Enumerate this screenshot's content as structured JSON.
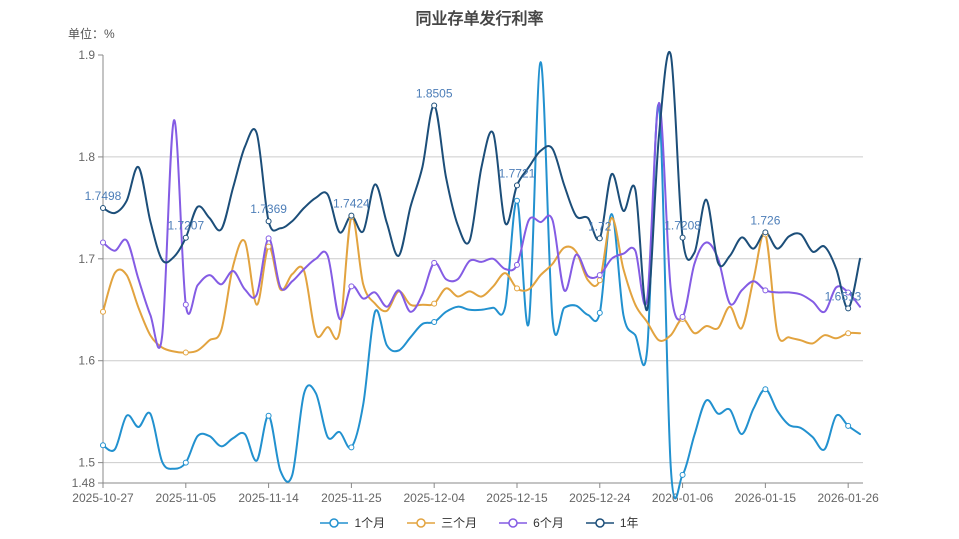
{
  "chart_data": {
    "type": "line",
    "title": "同业存单发行利率",
    "unit_label": "单位：%",
    "ylim": [
      1.48,
      1.9
    ],
    "y_ticks": [
      1.9,
      1.8,
      1.7,
      1.6,
      1.5,
      1.48
    ],
    "grid": true,
    "legend_position": "bottom",
    "x_tick_labels": [
      "2025-10-27",
      "2025-11-05",
      "2025-11-14",
      "2025-11-25",
      "2025-12-04",
      "2025-12-15",
      "2025-12-24",
      "2026-01-06",
      "2026-01-15",
      "2026-01-26"
    ],
    "tick_indices": [
      0,
      7,
      14,
      21,
      28,
      35,
      42,
      49,
      56,
      63
    ],
    "colors": {
      "one_month": "#2291cf",
      "three_month": "#e2a33f",
      "six_month": "#845ce4",
      "one_year": "#1c4e79",
      "point_label": "#4d7eb8",
      "grid_line": "#cccccc",
      "axis_line": "#888888",
      "tick_text": "#666666"
    },
    "series": [
      {
        "name": "1个月",
        "key": "1m",
        "color": "#2291cf",
        "values": [
          1.517,
          1.513,
          1.546,
          1.535,
          1.548,
          1.501,
          1.494,
          1.5,
          1.526,
          1.526,
          1.516,
          1.524,
          1.528,
          1.502,
          1.546,
          1.492,
          1.488,
          1.568,
          1.568,
          1.525,
          1.53,
          1.515,
          1.557,
          1.648,
          1.615,
          1.61,
          1.623,
          1.636,
          1.638,
          1.648,
          1.653,
          1.65,
          1.65,
          1.652,
          1.653,
          1.757,
          1.637,
          1.893,
          1.641,
          1.652,
          1.654,
          1.645,
          1.647,
          1.744,
          1.645,
          1.625,
          1.61,
          1.85,
          1.495,
          1.488,
          1.527,
          1.561,
          1.548,
          1.552,
          1.528,
          1.553,
          1.572,
          1.551,
          1.537,
          1.534,
          1.525,
          1.513,
          1.546,
          1.536,
          1.528
        ]
      },
      {
        "name": "三个月",
        "key": "3m",
        "color": "#e2a33f",
        "values": [
          1.648,
          1.686,
          1.684,
          1.652,
          1.625,
          1.613,
          1.609,
          1.608,
          1.61,
          1.62,
          1.63,
          1.693,
          1.717,
          1.655,
          1.712,
          1.67,
          1.685,
          1.688,
          1.626,
          1.633,
          1.628,
          1.741,
          1.675,
          1.656,
          1.649,
          1.668,
          1.655,
          1.655,
          1.656,
          1.671,
          1.663,
          1.668,
          1.663,
          1.673,
          1.686,
          1.671,
          1.67,
          1.684,
          1.695,
          1.711,
          1.707,
          1.679,
          1.679,
          1.74,
          1.69,
          1.655,
          1.638,
          1.62,
          1.625,
          1.641,
          1.627,
          1.634,
          1.632,
          1.653,
          1.632,
          1.68,
          1.724,
          1.628,
          1.623,
          1.62,
          1.617,
          1.625,
          1.622,
          1.627,
          1.627
        ]
      },
      {
        "name": "6个月",
        "key": "6m",
        "color": "#845ce4",
        "values": [
          1.716,
          1.708,
          1.718,
          1.68,
          1.645,
          1.624,
          1.836,
          1.655,
          1.674,
          1.684,
          1.675,
          1.688,
          1.67,
          1.665,
          1.72,
          1.672,
          1.678,
          1.69,
          1.7,
          1.703,
          1.641,
          1.673,
          1.661,
          1.667,
          1.653,
          1.669,
          1.648,
          1.665,
          1.696,
          1.68,
          1.68,
          1.698,
          1.697,
          1.7,
          1.69,
          1.694,
          1.738,
          1.736,
          1.738,
          1.669,
          1.704,
          1.683,
          1.684,
          1.7,
          1.705,
          1.708,
          1.66,
          1.853,
          1.67,
          1.643,
          1.695,
          1.716,
          1.7,
          1.656,
          1.669,
          1.678,
          1.669,
          1.667,
          1.667,
          1.665,
          1.658,
          1.648,
          1.672,
          1.667,
          1.653
        ]
      },
      {
        "name": "1年",
        "key": "1y",
        "color": "#1c4e79",
        "tick_labels": [
          "1.7498",
          "1.7207",
          "1.7369",
          "1.7424",
          "1.8505",
          "1.7721",
          "1.72",
          "1.7208",
          "1.726",
          "1.6513"
        ],
        "values": [
          1.7498,
          1.745,
          1.757,
          1.79,
          1.737,
          1.699,
          1.702,
          1.7207,
          1.751,
          1.74,
          1.729,
          1.77,
          1.81,
          1.823,
          1.7369,
          1.73,
          1.737,
          1.75,
          1.76,
          1.763,
          1.726,
          1.7424,
          1.727,
          1.773,
          1.735,
          1.703,
          1.751,
          1.79,
          1.8505,
          1.78,
          1.733,
          1.718,
          1.79,
          1.823,
          1.735,
          1.7721,
          1.79,
          1.806,
          1.808,
          1.772,
          1.742,
          1.74,
          1.72,
          1.783,
          1.747,
          1.768,
          1.65,
          1.82,
          1.9,
          1.7208,
          1.706,
          1.758,
          1.696,
          1.703,
          1.721,
          1.71,
          1.726,
          1.71,
          1.722,
          1.724,
          1.707,
          1.712,
          1.69,
          1.6513,
          1.7
        ]
      }
    ]
  }
}
